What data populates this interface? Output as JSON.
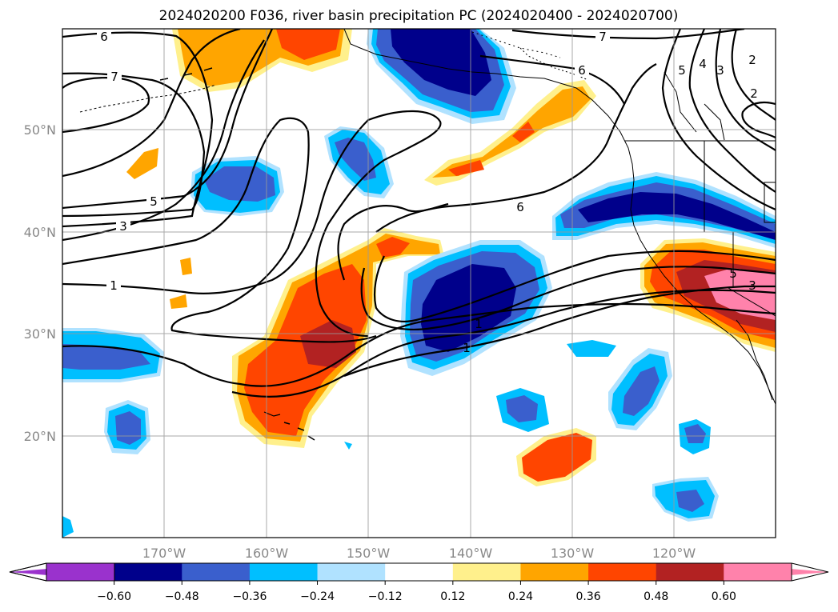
{
  "title": "2024020200 F036, river basin precipitation PC (2024020400 - 2024020700)",
  "lon_ticks": [
    "170°W",
    "160°W",
    "150°W",
    "140°W",
    "130°W",
    "120°W"
  ],
  "lat_ticks": [
    "50°N",
    "40°N",
    "30°N",
    "20°N"
  ],
  "contour_labels": [
    "6",
    "7",
    "5",
    "3",
    "1",
    "6",
    "6",
    "7",
    "5",
    "4",
    "3",
    "2",
    "2",
    "1",
    "1",
    "3",
    "5"
  ],
  "colorbar": {
    "ticks": [
      "−0.60",
      "−0.48",
      "−0.36",
      "−0.24",
      "−0.12",
      "0.12",
      "0.24",
      "0.36",
      "0.48",
      "0.60"
    ],
    "colors": [
      "#9a32cd",
      "#00008b",
      "#3a5fcd",
      "#00bfff",
      "#b0e2ff",
      "#ffffff",
      "#fff08c",
      "#ffa500",
      "#ff4500",
      "#b22222",
      "#ff82ab"
    ]
  }
}
